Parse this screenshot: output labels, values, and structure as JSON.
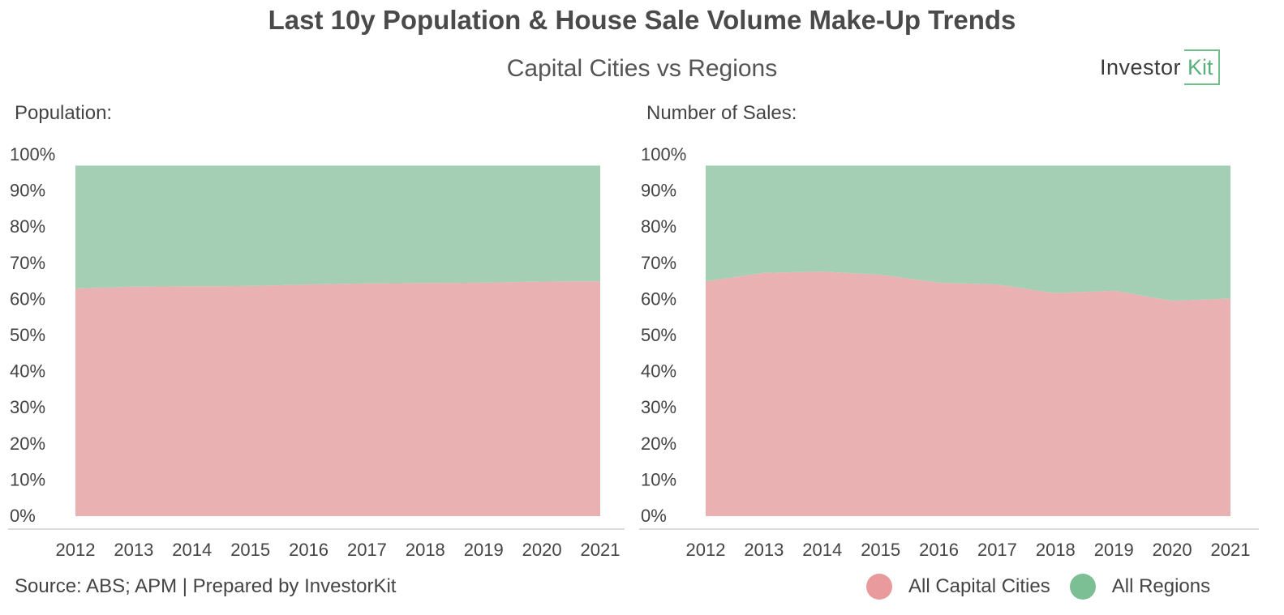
{
  "header": {
    "title": "Last 10y Population & House Sale Volume Make-Up Trends",
    "subtitle": "Capital Cities vs Regions",
    "logo_text_1": "Investor",
    "logo_text_2": "Kit"
  },
  "footer": {
    "source": "Source: ABS; APM | Prepared by InvestorKit"
  },
  "colors": {
    "capital": "#eab1b2",
    "regions": "#a4cfb5",
    "legend_capital": "#e89a9c",
    "legend_regions": "#7dbf95"
  },
  "legend": [
    {
      "label": "All Capital Cities"
    },
    {
      "label": "All Regions"
    }
  ],
  "chart_data": [
    {
      "type": "area",
      "stacked": true,
      "title": "Population:",
      "x": [
        "2012",
        "2013",
        "2014",
        "2015",
        "2016",
        "2017",
        "2018",
        "2019",
        "2020",
        "2021"
      ],
      "y_ticks": [
        "0%",
        "10%",
        "20%",
        "30%",
        "40%",
        "50%",
        "60%",
        "70%",
        "80%",
        "90%",
        "100%"
      ],
      "ylim": [
        0,
        100
      ],
      "series": [
        {
          "name": "All Capital Cities",
          "values": [
            63.0,
            63.5,
            63.6,
            63.7,
            64.1,
            64.4,
            64.5,
            64.6,
            64.9,
            65.0
          ]
        },
        {
          "name": "All Regions",
          "values": [
            34.0,
            33.5,
            33.4,
            33.3,
            32.9,
            32.6,
            32.5,
            32.4,
            32.1,
            32.0
          ]
        }
      ]
    },
    {
      "type": "area",
      "stacked": true,
      "title": "Number of Sales:",
      "x": [
        "2012",
        "2013",
        "2014",
        "2015",
        "2016",
        "2017",
        "2018",
        "2019",
        "2020",
        "2021"
      ],
      "y_ticks": [
        "0%",
        "10%",
        "20%",
        "30%",
        "40%",
        "50%",
        "60%",
        "70%",
        "80%",
        "90%",
        "100%"
      ],
      "ylim": [
        0,
        100
      ],
      "series": [
        {
          "name": "All Capital Cities",
          "values": [
            65.0,
            67.3,
            67.7,
            66.8,
            64.6,
            64.1,
            61.7,
            62.4,
            59.6,
            60.2
          ]
        },
        {
          "name": "All Regions",
          "values": [
            32.0,
            29.7,
            29.3,
            30.2,
            32.4,
            32.9,
            35.3,
            34.6,
            37.4,
            36.8
          ]
        }
      ]
    }
  ]
}
